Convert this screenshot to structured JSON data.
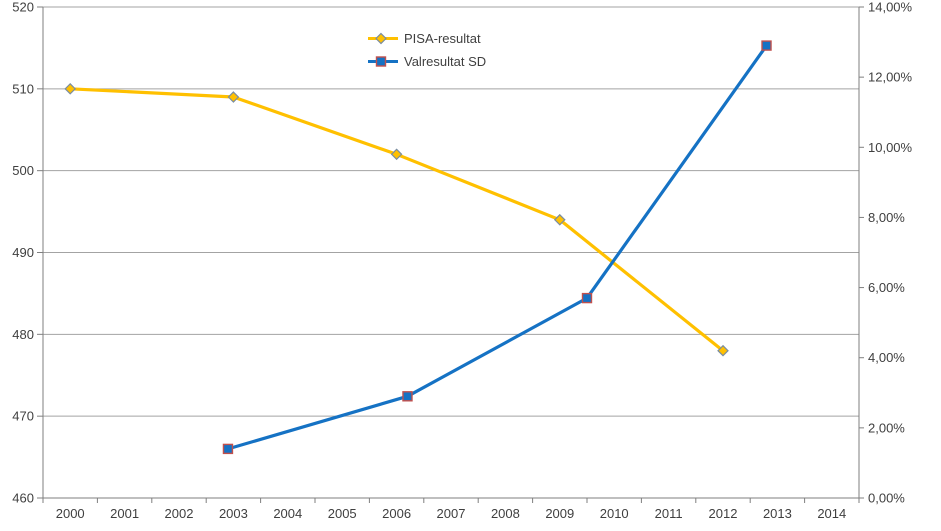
{
  "chart_data": {
    "type": "line",
    "title": "",
    "x_axis": {
      "min": 2000,
      "labels": [
        "2000",
        "2001",
        "2002",
        "2003",
        "2004",
        "2005",
        "2006",
        "2007",
        "2008",
        "2009",
        "2010",
        "2011",
        "2012",
        "2013",
        "2014"
      ]
    },
    "y_axis_left": {
      "min": 460,
      "max": 520,
      "step": 10,
      "tick_labels": [
        "460",
        "470",
        "480",
        "490",
        "500",
        "510",
        "520"
      ]
    },
    "y_axis_right": {
      "min": 0,
      "max": 14,
      "step": 2,
      "tick_labels": [
        "0,00%",
        "2,00%",
        "4,00%",
        "6,00%",
        "8,00%",
        "10,00%",
        "12,00%",
        "14,00%"
      ]
    },
    "grid": true,
    "legend_position": "top-center",
    "series": [
      {
        "name": "PISA-resultat",
        "axis": "left",
        "color": "#FFC000",
        "marker": "diamond",
        "marker_fill": "#FFC000",
        "marker_border": "#7A8DA0",
        "x": [
          2000,
          2003,
          2006,
          2009,
          2012
        ],
        "values": [
          510,
          509,
          502,
          494,
          478
        ]
      },
      {
        "name": "Valresultat SD",
        "axis": "right",
        "color": "#1572C4",
        "marker": "square",
        "marker_fill": "#1572C4",
        "marker_border": "#C0504D",
        "x": [
          2002.9,
          2006.2,
          2009.5,
          2012.8
        ],
        "values": [
          1.4,
          2.9,
          5.7,
          12.9
        ]
      }
    ],
    "colors": {
      "gridline": "#A3A3A3",
      "axis": "#7F7F7F",
      "text": "#3F3F3F",
      "background": "#FFFFFF"
    }
  }
}
